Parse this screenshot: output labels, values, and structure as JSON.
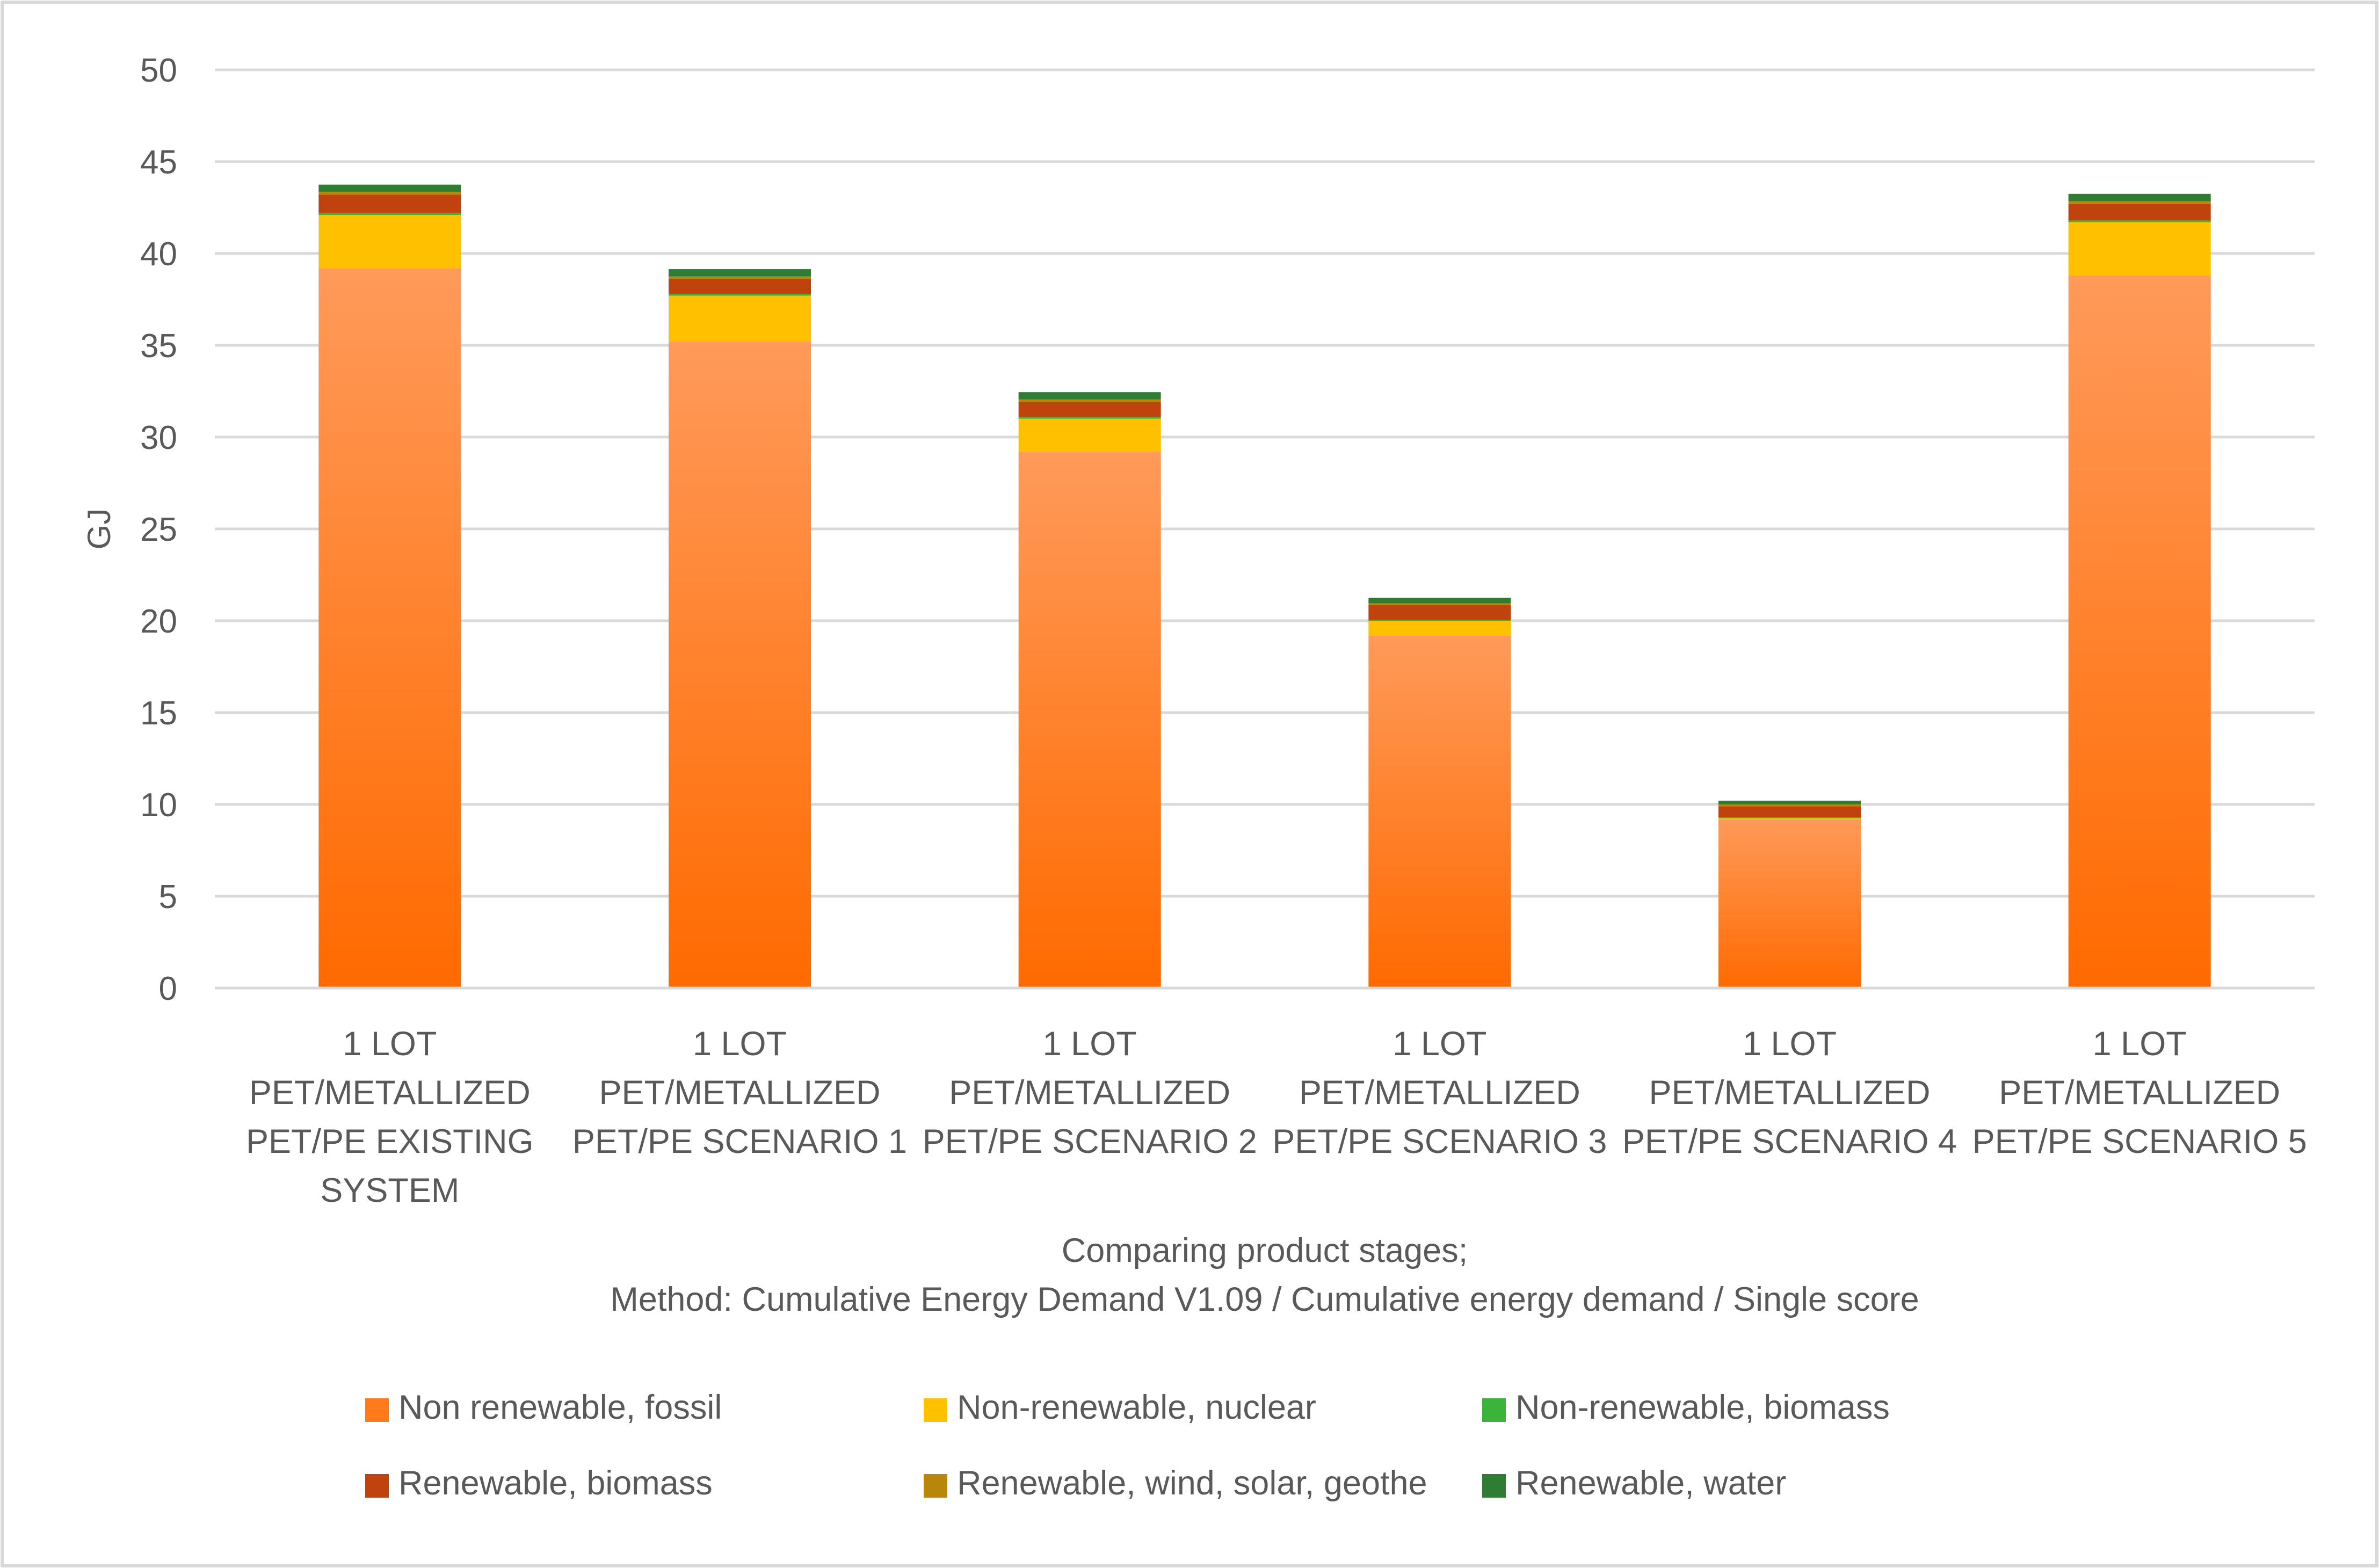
{
  "chart_data": {
    "type": "bar",
    "stacked": true,
    "title": "",
    "ylabel": "GJ",
    "xlabel_lines": [
      "Comparing product stages;",
      "Method: Cumulative Energy Demand V1.09 / Cumulative energy demand / Single score"
    ],
    "ylim": [
      0,
      50
    ],
    "yticks": [
      0,
      5,
      10,
      15,
      20,
      25,
      30,
      35,
      40,
      45,
      50
    ],
    "grid": true,
    "legend_position": "bottom",
    "categories": [
      [
        "1 LOT",
        "PET/METALLIZED",
        "PET/PE EXISTING",
        "SYSTEM"
      ],
      [
        "1 LOT",
        "PET/METALLIZED",
        "PET/PE SCENARIO 1"
      ],
      [
        "1 LOT",
        "PET/METALLIZED",
        "PET/PE SCENARIO 2"
      ],
      [
        "1 LOT",
        "PET/METALLIZED",
        "PET/PE SCENARIO 3"
      ],
      [
        "1 LOT",
        "PET/METALLIZED",
        "PET/PE SCENARIO 4"
      ],
      [
        "1 LOT",
        "PET/METALLIZED",
        "PET/PE SCENARIO 5"
      ]
    ],
    "series": [
      {
        "name": "Non renewable, fossil",
        "color": "#ff7a1a",
        "values": [
          39.2,
          35.2,
          29.2,
          19.2,
          9.2,
          38.8
        ]
      },
      {
        "name": "Non-renewable, nuclear",
        "color": "#ffc000",
        "values": [
          2.9,
          2.5,
          1.8,
          0.8,
          0.05,
          2.9
        ]
      },
      {
        "name": "Non-renewable, biomass",
        "color": "#3cb43c",
        "values": [
          0.1,
          0.1,
          0.1,
          0.05,
          0.05,
          0.1
        ]
      },
      {
        "name": "Renewable, biomass",
        "color": "#c0420c",
        "values": [
          1.0,
          0.8,
          0.8,
          0.8,
          0.6,
          0.9
        ]
      },
      {
        "name": "Renewable, wind, solar, geothe",
        "color": "#b8860b",
        "values": [
          0.15,
          0.15,
          0.15,
          0.1,
          0.1,
          0.15
        ]
      },
      {
        "name": "Renewable, water",
        "color": "#2e7d32",
        "values": [
          0.4,
          0.4,
          0.4,
          0.3,
          0.2,
          0.4
        ]
      }
    ]
  }
}
